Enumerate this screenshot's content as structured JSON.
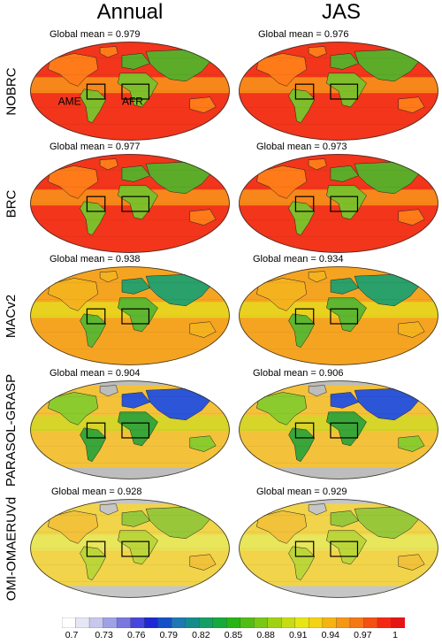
{
  "columns": [
    "Annual",
    "JAS"
  ],
  "rows": [
    {
      "label": "NOBRC",
      "means": [
        "Global mean = 0.979",
        "Global mean = 0.976"
      ],
      "palette": "red",
      "region_labels": [
        "AME",
        "AFR"
      ]
    },
    {
      "label": "BRC",
      "means": [
        "Global mean = 0.977",
        "Global mean = 0.973"
      ],
      "palette": "red",
      "region_labels": []
    },
    {
      "label": "MACv2",
      "means": [
        "Global mean = 0.938",
        "Global mean = 0.934"
      ],
      "palette": "mac",
      "region_labels": []
    },
    {
      "label": "PARASOL-GRASP",
      "means": [
        "Global mean = 0.904",
        "Global mean = 0.906"
      ],
      "palette": "parasol",
      "region_labels": []
    },
    {
      "label": "OMI-OMAERUVd",
      "means": [
        "Global mean = 0.928",
        "Global mean = 0.929"
      ],
      "palette": "omi",
      "region_labels": []
    }
  ],
  "colorbar": {
    "ticks": [
      "0.7",
      "0.73",
      "0.76",
      "0.79",
      "0.82",
      "0.85",
      "0.88",
      "0.91",
      "0.94",
      "0.97",
      "1"
    ],
    "colors": [
      "#ffffff",
      "#e6e6f5",
      "#c8c8ee",
      "#a0a0e6",
      "#7878e0",
      "#4646dc",
      "#1e28d2",
      "#1450c8",
      "#1e78b4",
      "#148c8c",
      "#14a064",
      "#14aa3c",
      "#28b414",
      "#50be14",
      "#78c814",
      "#a0d214",
      "#c8dc14",
      "#e6e614",
      "#f5d214",
      "#f5b414",
      "#f59614",
      "#f57814",
      "#f55014",
      "#f52814",
      "#e61414"
    ]
  }
}
